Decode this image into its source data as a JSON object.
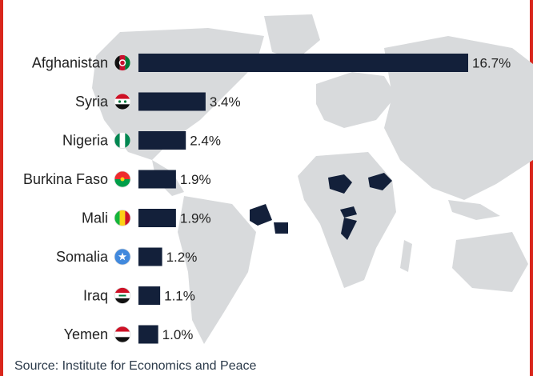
{
  "source_text": "Source: Institute for Economics and Peace",
  "colors": {
    "bar": "#13203a",
    "frame": "#d9261c",
    "map_land": "#d8dadc",
    "map_highlight": "#13203a"
  },
  "chart_data": {
    "type": "bar",
    "orientation": "horizontal",
    "categories": [
      "Afghanistan",
      "Syria",
      "Nigeria",
      "Burkina Faso",
      "Mali",
      "Somalia",
      "Iraq",
      "Yemen"
    ],
    "values": [
      16.7,
      3.4,
      2.4,
      1.9,
      1.9,
      1.2,
      1.1,
      1.0
    ],
    "value_labels": [
      "16.7%",
      "3.4%",
      "2.4%",
      "1.9%",
      "1.9%",
      "1.2%",
      "1.1%",
      "1.0%"
    ],
    "flags": [
      "afghanistan-flag-icon",
      "syria-flag-icon",
      "nigeria-flag-icon",
      "burkina-faso-flag-icon",
      "mali-flag-icon",
      "somalia-flag-icon",
      "iraq-flag-icon",
      "yemen-flag-icon"
    ],
    "xlim": [
      0,
      16.7
    ],
    "grid": false,
    "legend": "none"
  }
}
